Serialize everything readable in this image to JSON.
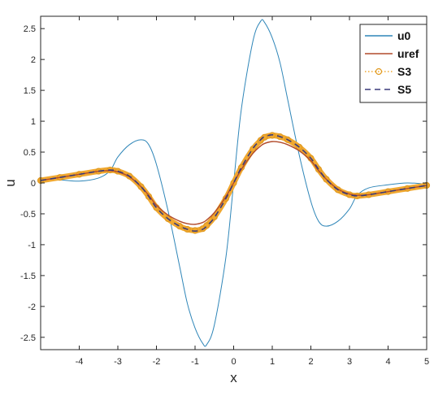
{
  "chart_data": {
    "type": "line",
    "xlabel": "x",
    "ylabel": "u",
    "xlim": [
      -5,
      5
    ],
    "ylim": [
      -2.7,
      2.7
    ],
    "xticks": [
      -4,
      -3,
      -2,
      -1,
      0,
      1,
      2,
      3,
      4,
      5
    ],
    "yticks": [
      -2.5,
      -2,
      -1.5,
      -1,
      -0.5,
      0,
      0.5,
      1,
      1.5,
      2,
      2.5
    ],
    "grid": false,
    "legend_position": "top-right",
    "x": [
      -5,
      -4.5,
      -4,
      -3.5,
      -3.2,
      -3,
      -2.7,
      -2.4,
      -2.2,
      -2,
      -1.7,
      -1.4,
      -1.2,
      -1,
      -0.8,
      -0.7,
      -0.5,
      -0.2,
      0,
      0.2,
      0.5,
      0.7,
      0.8,
      1,
      1.2,
      1.4,
      1.7,
      2,
      2.2,
      2.4,
      2.7,
      3,
      3.2,
      3.5,
      4,
      4.5,
      5
    ],
    "series": [
      {
        "name": "u0",
        "color": "#2f86b8",
        "style": "solid",
        "values": [
          0.05,
          0.05,
          0.03,
          0.08,
          0.2,
          0.42,
          0.62,
          0.7,
          0.62,
          0.3,
          -0.45,
          -1.35,
          -1.95,
          -2.35,
          -2.6,
          -2.62,
          -2.3,
          -1.2,
          0.0,
          1.2,
          2.3,
          2.62,
          2.6,
          2.35,
          1.95,
          1.35,
          0.45,
          -0.3,
          -0.62,
          -0.7,
          -0.62,
          -0.42,
          -0.2,
          -0.08,
          -0.03,
          0.0,
          -0.02
        ]
      },
      {
        "name": "uref",
        "color": "#b24a2a",
        "style": "solid",
        "values": [
          0.04,
          0.09,
          0.14,
          0.19,
          0.2,
          0.18,
          0.1,
          -0.06,
          -0.2,
          -0.36,
          -0.52,
          -0.62,
          -0.66,
          -0.67,
          -0.64,
          -0.6,
          -0.48,
          -0.22,
          0.0,
          0.22,
          0.48,
          0.6,
          0.64,
          0.67,
          0.66,
          0.62,
          0.52,
          0.36,
          0.2,
          0.06,
          -0.1,
          -0.18,
          -0.2,
          -0.19,
          -0.14,
          -0.09,
          -0.04
        ]
      },
      {
        "name": "S3",
        "color": "#f0a830",
        "style": "markers",
        "values": [
          0.04,
          0.09,
          0.14,
          0.19,
          0.21,
          0.19,
          0.11,
          -0.06,
          -0.22,
          -0.4,
          -0.58,
          -0.7,
          -0.75,
          -0.77,
          -0.74,
          -0.69,
          -0.55,
          -0.25,
          0.0,
          0.25,
          0.55,
          0.69,
          0.74,
          0.77,
          0.75,
          0.7,
          0.58,
          0.4,
          0.22,
          0.06,
          -0.11,
          -0.19,
          -0.21,
          -0.19,
          -0.14,
          -0.09,
          -0.04
        ]
      },
      {
        "name": "S5",
        "color": "#3a3a7a",
        "style": "dashed",
        "values": [
          0.04,
          0.09,
          0.14,
          0.19,
          0.21,
          0.19,
          0.11,
          -0.06,
          -0.22,
          -0.4,
          -0.58,
          -0.7,
          -0.75,
          -0.78,
          -0.75,
          -0.7,
          -0.56,
          -0.25,
          0.0,
          0.25,
          0.56,
          0.7,
          0.75,
          0.78,
          0.75,
          0.7,
          0.58,
          0.4,
          0.22,
          0.06,
          -0.11,
          -0.19,
          -0.21,
          -0.19,
          -0.14,
          -0.09,
          -0.04
        ]
      }
    ]
  }
}
